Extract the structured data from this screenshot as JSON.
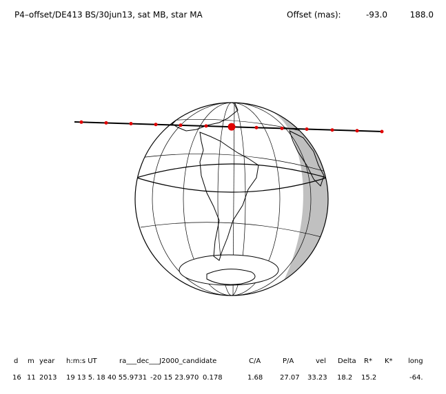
{
  "header": {
    "title": "P4–offset/DE413 BS/30jun13, sat MB, star MA",
    "offset_label": "Offset (mas):",
    "offset_values": [
      "-93.0",
      "188.0"
    ]
  },
  "table": {
    "columns": [
      "d",
      "m",
      "year",
      "h:m:s UT",
      "ra___dec___J2000_candidate",
      "C/A",
      "P/A",
      "vel",
      "Delta",
      "R*",
      "K*",
      "long"
    ],
    "rows": [
      [
        "16",
        "11",
        "2013",
        "19 13 5.",
        "18 40 55.9731",
        "-20 15 23.970",
        "0.178",
        "1.68",
        "27.07",
        "33.23",
        "18.2",
        "15.2",
        "-64."
      ]
    ]
  }
}
